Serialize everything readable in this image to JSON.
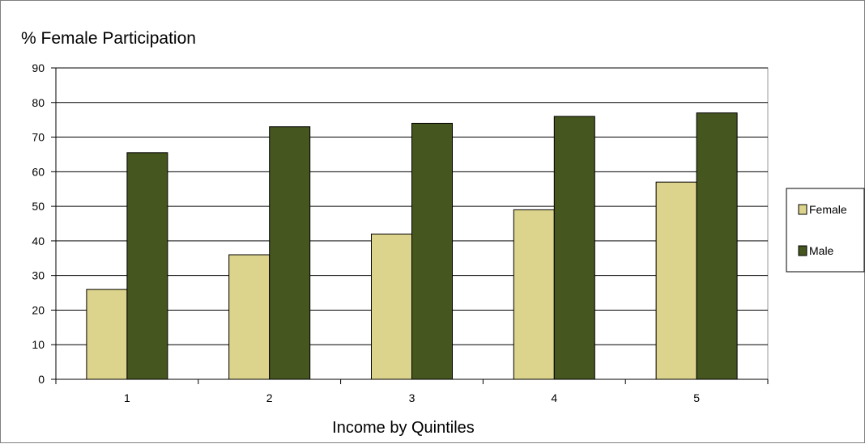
{
  "chart_data": {
    "type": "bar",
    "title": "",
    "ylabel": "% Female Participation",
    "xlabel": "Income by Quintiles",
    "categories": [
      "1",
      "2",
      "3",
      "4",
      "5"
    ],
    "ylim": [
      0,
      90
    ],
    "yticks": [
      0,
      10,
      20,
      30,
      40,
      50,
      60,
      70,
      80,
      90
    ],
    "grid": true,
    "legend_position": "right",
    "series": [
      {
        "name": "Female",
        "values": [
          26,
          36,
          42,
          49,
          57
        ],
        "color": "#dcd38c"
      },
      {
        "name": "Male",
        "values": [
          65.5,
          73,
          74,
          76,
          77
        ],
        "color": "#45561f"
      }
    ]
  }
}
